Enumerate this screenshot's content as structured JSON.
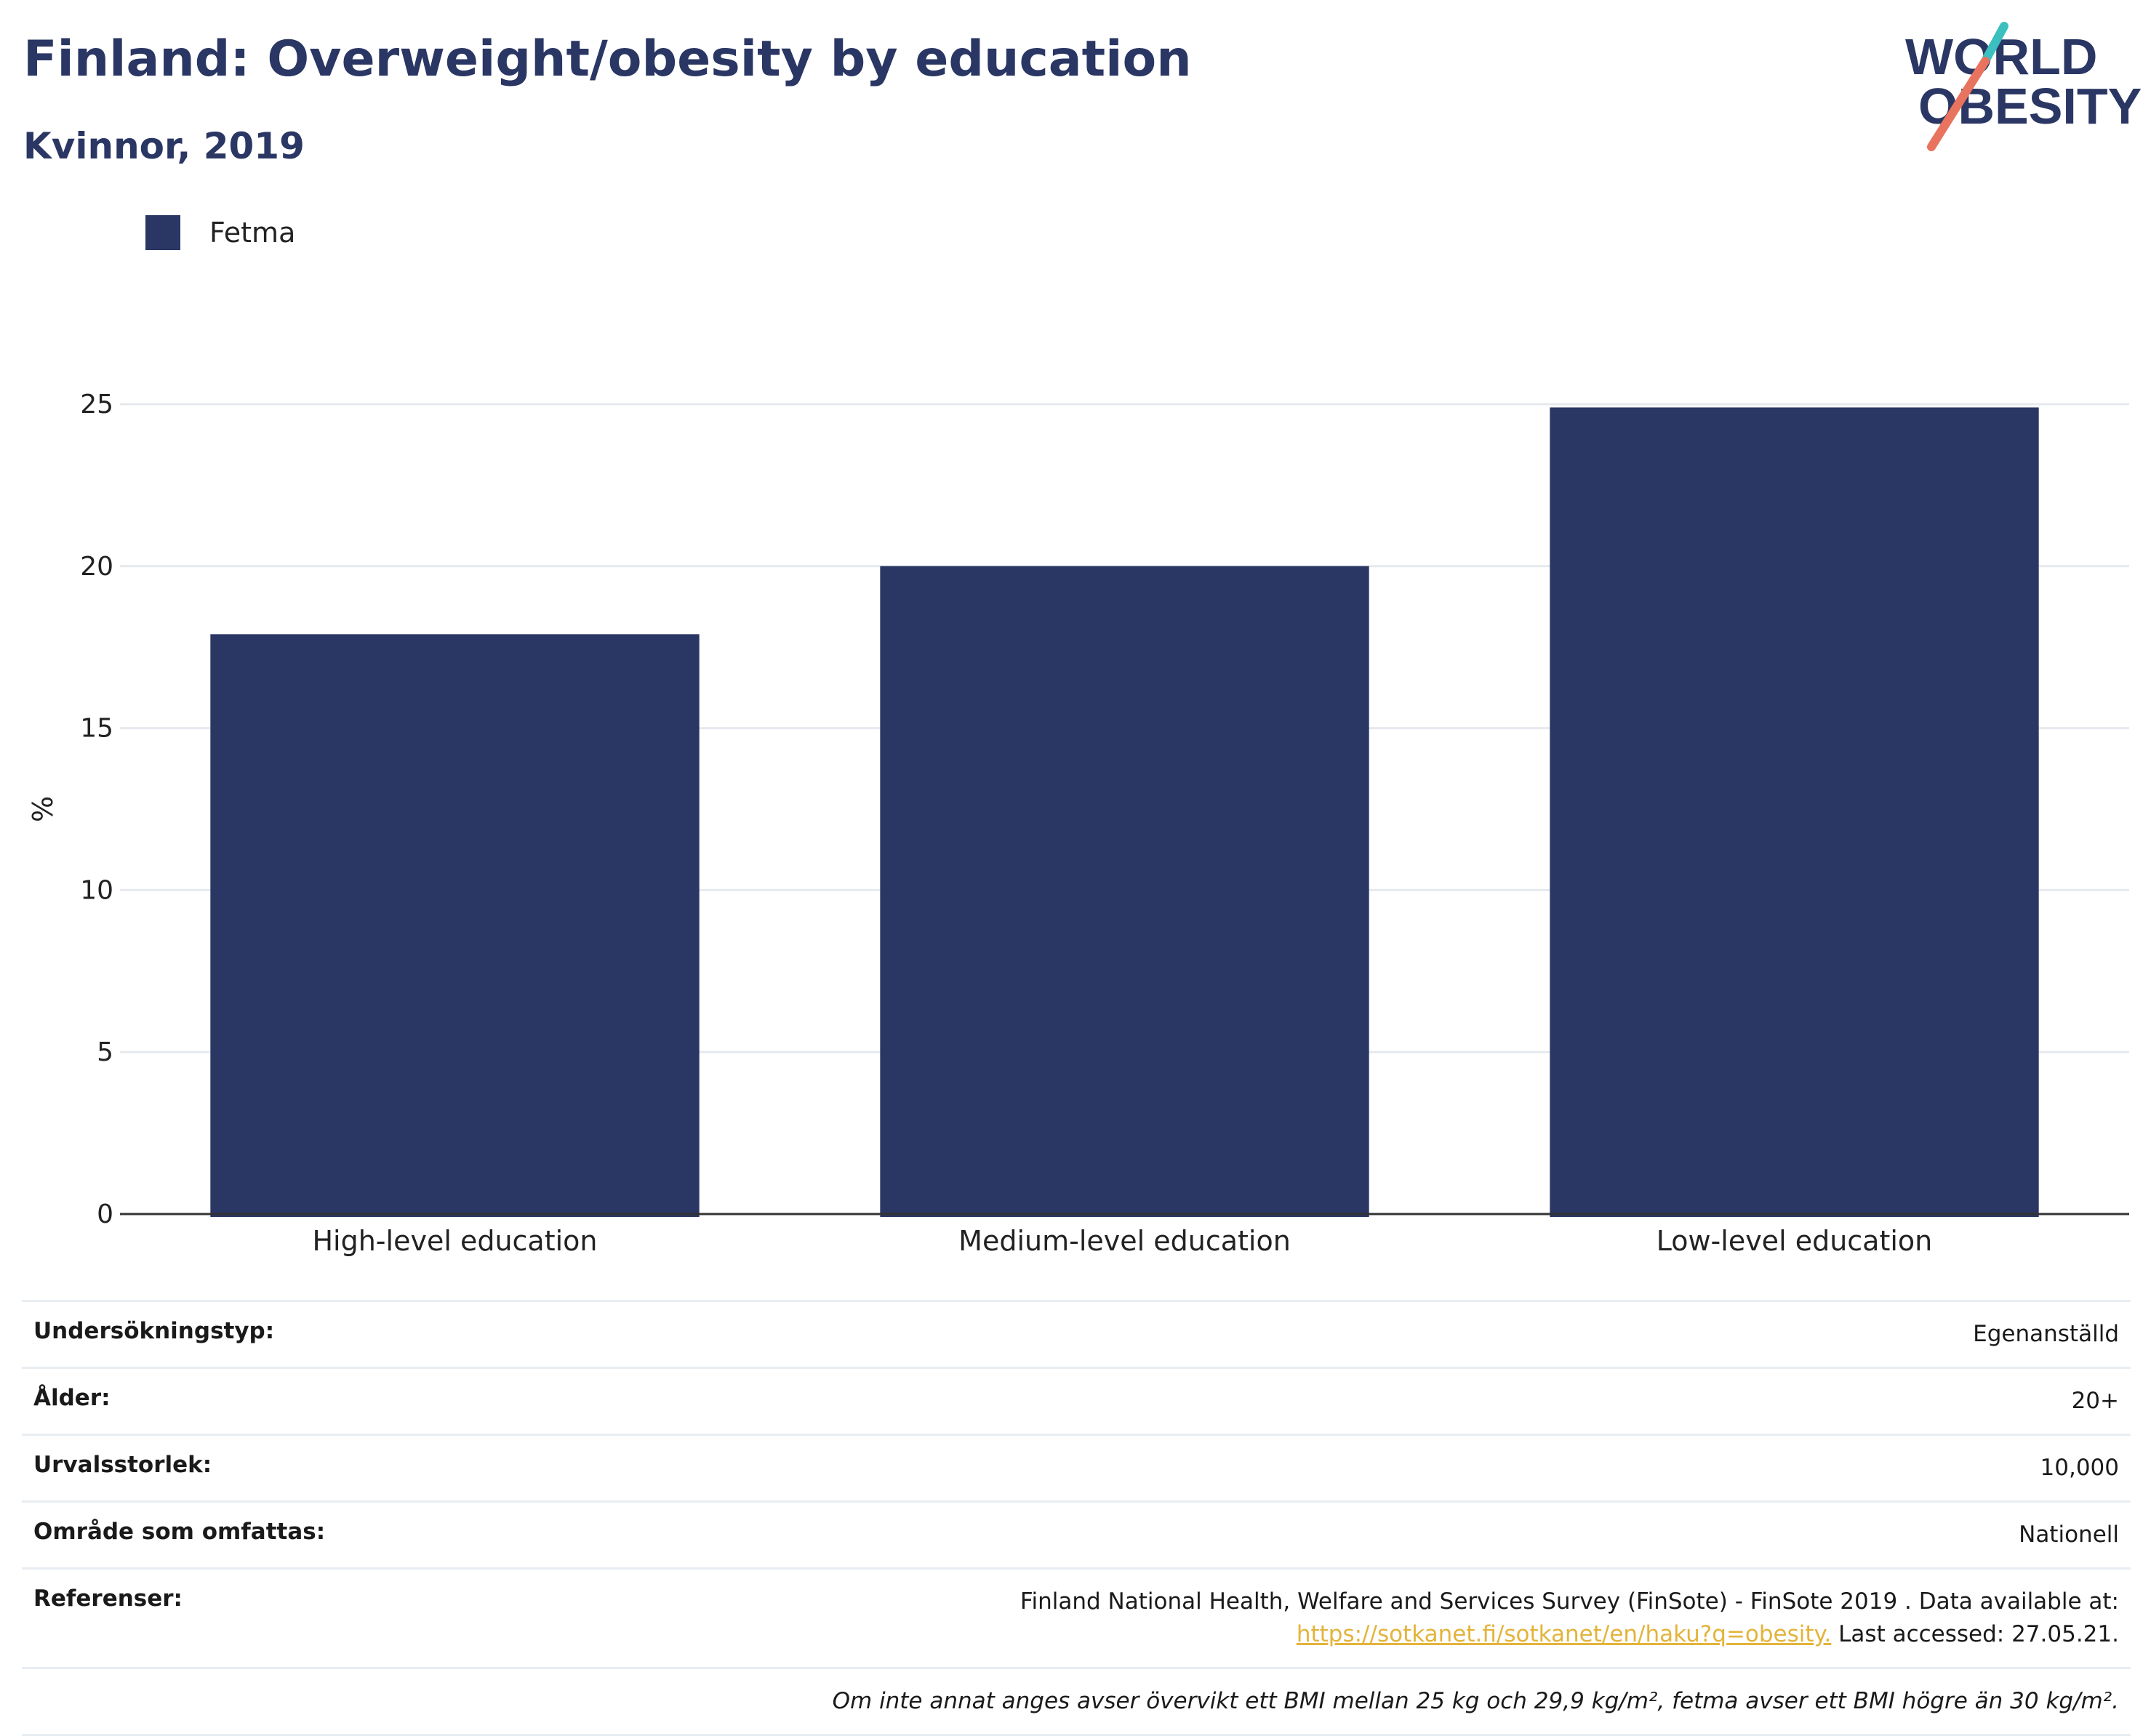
{
  "header": {
    "title": "Finland: Overweight/obesity by education",
    "subtitle": "Kvinnor, 2019"
  },
  "logo": {
    "line1": "WORLD",
    "line2": "OBESITY"
  },
  "colors": {
    "bar": "#2a3663",
    "title": "#2a3663",
    "grid": "#e6e9ee",
    "axis": "#333333",
    "link": "#e3b43b",
    "logo_teal": "#3bbfbf",
    "logo_coral": "#e8735e"
  },
  "chart_data": {
    "type": "bar",
    "categories": [
      "High-level education",
      "Medium-level education",
      "Low-level education"
    ],
    "series": [
      {
        "name": "Fetma",
        "values": [
          17.9,
          20.0,
          24.9
        ]
      }
    ],
    "ylabel": "%",
    "xlabel": "",
    "ylim": [
      0,
      25
    ],
    "yticks": [
      0,
      5,
      10,
      15,
      20,
      25
    ],
    "grid": true,
    "legend_position": "top-left"
  },
  "footer": {
    "rows": [
      {
        "label": "Undersökningstyp:",
        "value": "Egenanställd"
      },
      {
        "label": "Ålder:",
        "value": "20+"
      },
      {
        "label": "Urvalsstorlek:",
        "value": "10,000"
      },
      {
        "label": "Område som omfattas:",
        "value": "Nationell"
      }
    ],
    "references": {
      "label": "Referenser:",
      "text": "Finland National Health, Welfare and Services Survey (FinSote) - FinSote 2019 . Data available at:",
      "link": "https://sotkanet.fi/sotkanet/en/haku?q=obesity.",
      "suffix": " Last accessed: 27.05.21."
    },
    "note": "Om inte annat anges avser övervikt ett BMI mellan 25 kg och 29,9 kg/m², fetma avser ett BMI högre än 30 kg/m²."
  }
}
